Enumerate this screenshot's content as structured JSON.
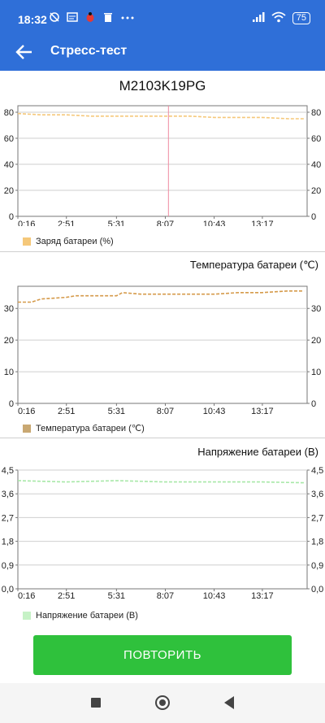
{
  "status_bar": {
    "time": "18:32",
    "notification_icons": [
      "alarm-off-icon",
      "message-icon",
      "bug-icon",
      "trash-icon",
      "more-icon"
    ],
    "battery": "75"
  },
  "app_bar": {
    "title": "Стресс-тест"
  },
  "device_title": "M2103K19PG",
  "charts": [
    {
      "id": "charge",
      "title": "",
      "legend": "Заряд батареи (%)",
      "color": "#f5c87a",
      "ylim": [
        0,
        85
      ],
      "y_ticks": [
        "0",
        "20",
        "40",
        "60",
        "80"
      ],
      "x_ticks": [
        "0:16",
        "2:51",
        "5:31",
        "8:07",
        "10:43",
        "13:17"
      ]
    },
    {
      "id": "temperature",
      "title": "Температура батареи (℃)",
      "legend": "Температура батареи (℃)",
      "color": "#d59a4a",
      "ylim": [
        0,
        37
      ],
      "y_ticks": [
        "0",
        "10",
        "20",
        "30"
      ],
      "x_ticks": [
        "0:16",
        "2:51",
        "5:31",
        "8:07",
        "10:43",
        "13:17"
      ]
    },
    {
      "id": "voltage",
      "title": "Напряжение батареи (В)",
      "legend": "Напряжение батареи (В)",
      "color": "#a7e8a7",
      "ylim": [
        0,
        4.5
      ],
      "y_ticks": [
        "0,0",
        "0,9",
        "1,8",
        "2,7",
        "3,6",
        "4,5"
      ],
      "x_ticks": [
        "0:16",
        "2:51",
        "5:31",
        "8:07",
        "10:43",
        "13:17"
      ]
    }
  ],
  "chart_data": [
    {
      "type": "line",
      "x": [
        "0:16",
        "1:30",
        "2:51",
        "4:10",
        "5:31",
        "6:50",
        "8:07",
        "9:25",
        "10:43",
        "12:00",
        "13:17",
        "14:40",
        "15:30"
      ],
      "series": [
        {
          "name": "Заряд батареи (%)",
          "values": [
            79,
            78,
            78,
            77,
            77,
            77,
            77,
            77,
            76,
            76,
            76,
            75,
            75
          ]
        }
      ],
      "marker_x": "8:17",
      "ylim": [
        0,
        85
      ]
    },
    {
      "type": "line",
      "x": [
        "0:16",
        "1:00",
        "1:30",
        "2:51",
        "3:20",
        "4:10",
        "5:31",
        "5:50",
        "6:50",
        "8:07",
        "9:25",
        "10:43",
        "12:00",
        "13:17",
        "14:40",
        "15:30"
      ],
      "series": [
        {
          "name": "Температура батареи (℃)",
          "values": [
            32,
            32,
            33,
            33.5,
            34,
            34,
            34,
            35,
            34.5,
            34.5,
            34.5,
            34.5,
            35,
            35,
            35.5,
            35.5
          ]
        }
      ],
      "ylim": [
        0,
        37
      ]
    },
    {
      "type": "line",
      "x": [
        "0:16",
        "2:51",
        "5:31",
        "8:07",
        "10:43",
        "13:17",
        "15:30"
      ],
      "series": [
        {
          "name": "Напряжение батареи (В)",
          "values": [
            4.1,
            4.05,
            4.1,
            4.05,
            4.05,
            4.05,
            4.02
          ]
        }
      ],
      "ylim": [
        0,
        4.5
      ]
    }
  ],
  "button": {
    "label": "ПОВТОРИТЬ"
  }
}
